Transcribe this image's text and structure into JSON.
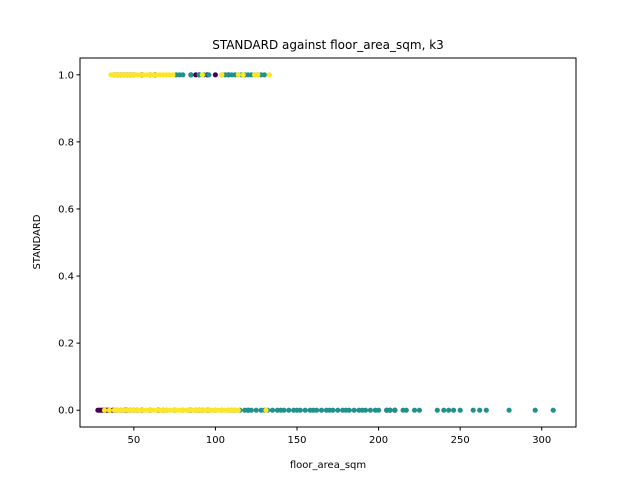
{
  "chart_data": {
    "type": "scatter",
    "title": "STANDARD against floor_area_sqm, k3",
    "xlabel": "floor_area_sqm",
    "ylabel": "STANDARD",
    "xlim": [
      17,
      321
    ],
    "ylim": [
      -0.05,
      1.05
    ],
    "xticks": [
      50,
      100,
      150,
      200,
      250,
      300
    ],
    "yticks": [
      0.0,
      0.2,
      0.4,
      0.6,
      0.8,
      1.0
    ],
    "ytick_labels": [
      "0.0",
      "0.2",
      "0.4",
      "0.6",
      "0.8",
      "1.0"
    ],
    "grid": false,
    "legend": "none",
    "series": [
      {
        "color": "#440154",
        "x": [
          28,
          29,
          30,
          31,
          32,
          33,
          34,
          35,
          37,
          38,
          40,
          42,
          44,
          45,
          46,
          48,
          50,
          52,
          55,
          60,
          65,
          68,
          84,
          88,
          90,
          92,
          96,
          120,
          205,
          207,
          210,
          38,
          40,
          42,
          44,
          46,
          48,
          50,
          55,
          60,
          63,
          85,
          88,
          90,
          95,
          100,
          108
        ],
        "y": [
          0,
          0,
          0,
          0,
          0,
          0,
          0,
          0,
          0,
          0,
          0,
          0,
          0,
          0,
          0,
          0,
          0,
          0,
          0,
          0,
          0,
          0,
          0,
          0,
          0,
          0,
          0,
          0,
          0,
          0,
          0,
          1,
          1,
          1,
          1,
          1,
          1,
          1,
          1,
          1,
          1,
          1,
          1,
          1,
          1,
          1,
          1
        ]
      },
      {
        "color": "#21918c",
        "x": [
          60,
          65,
          70,
          75,
          80,
          85,
          90,
          95,
          100,
          104,
          108,
          110,
          112,
          115,
          118,
          120,
          122,
          125,
          128,
          130,
          132,
          135,
          138,
          140,
          142,
          145,
          148,
          150,
          152,
          155,
          158,
          160,
          162,
          165,
          168,
          170,
          172,
          175,
          178,
          180,
          182,
          185,
          188,
          190,
          192,
          195,
          198,
          200,
          205,
          207,
          210,
          215,
          217,
          222,
          225,
          236,
          240,
          243,
          246,
          250,
          258,
          262,
          266,
          280,
          296,
          307,
          76,
          78,
          80,
          85,
          90,
          93,
          96,
          104,
          106,
          108,
          110,
          112,
          114,
          116,
          118,
          120,
          122,
          124,
          126,
          128,
          130
        ],
        "y": [
          0,
          0,
          0,
          0,
          0,
          0,
          0,
          0,
          0,
          0,
          0,
          0,
          0,
          0,
          0,
          0,
          0,
          0,
          0,
          0,
          0,
          0,
          0,
          0,
          0,
          0,
          0,
          0,
          0,
          0,
          0,
          0,
          0,
          0,
          0,
          0,
          0,
          0,
          0,
          0,
          0,
          0,
          0,
          0,
          0,
          0,
          0,
          0,
          0,
          0,
          0,
          0,
          0,
          0,
          0,
          0,
          0,
          0,
          0,
          0,
          0,
          0,
          0,
          0,
          0,
          0,
          1,
          1,
          1,
          1,
          1,
          1,
          1,
          1,
          1,
          1,
          1,
          1,
          1,
          1,
          1,
          1,
          1,
          1,
          1,
          1,
          1
        ]
      },
      {
        "color": "#fde725",
        "x": [
          32,
          35,
          38,
          40,
          42,
          44,
          46,
          48,
          50,
          52,
          54,
          56,
          58,
          60,
          62,
          64,
          66,
          68,
          70,
          72,
          74,
          76,
          78,
          80,
          82,
          84,
          86,
          88,
          90,
          92,
          94,
          96,
          98,
          100,
          102,
          104,
          106,
          108,
          110,
          112,
          114,
          131,
          36,
          38,
          40,
          42,
          44,
          46,
          48,
          50,
          52,
          54,
          56,
          58,
          60,
          62,
          64,
          66,
          68,
          70,
          72,
          74,
          92,
          104,
          114,
          117,
          124,
          126,
          133
        ],
        "y": [
          0,
          0,
          0,
          0,
          0,
          0,
          0,
          0,
          0,
          0,
          0,
          0,
          0,
          0,
          0,
          0,
          0,
          0,
          0,
          0,
          0,
          0,
          0,
          0,
          0,
          0,
          0,
          0,
          0,
          0,
          0,
          0,
          0,
          0,
          0,
          0,
          0,
          0,
          0,
          0,
          0,
          0,
          1,
          1,
          1,
          1,
          1,
          1,
          1,
          1,
          1,
          1,
          1,
          1,
          1,
          1,
          1,
          1,
          1,
          1,
          1,
          1,
          1,
          1,
          1,
          1,
          1,
          1,
          1
        ]
      }
    ]
  }
}
